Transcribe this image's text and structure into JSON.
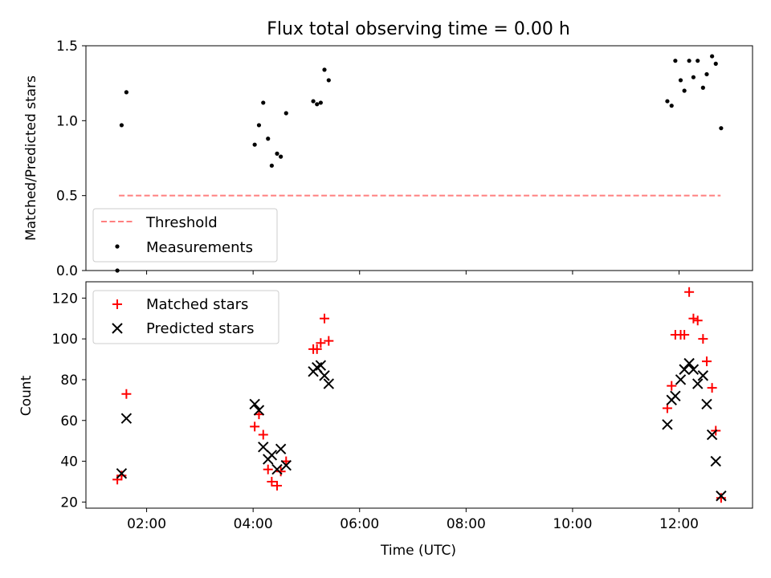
{
  "figure": {
    "title": "Flux total observing time = 0.00 h",
    "xlabel": "Time (UTC)",
    "xticks": [
      {
        "hour": 2,
        "label": "02:00"
      },
      {
        "hour": 4,
        "label": "04:00"
      },
      {
        "hour": 6,
        "label": "06:00"
      },
      {
        "hour": 8,
        "label": "08:00"
      },
      {
        "hour": 10,
        "label": "10:00"
      },
      {
        "hour": 12,
        "label": "12:00"
      }
    ],
    "xlim": [
      0.86,
      13.38
    ],
    "x_unit": "hours UTC"
  },
  "colors": {
    "threshold": "#ff7f7f",
    "measurements": "#000000",
    "matched": "#ff0000",
    "predicted": "#000000"
  },
  "chart_data": [
    {
      "type": "scatter",
      "ylabel": "Matched/Predicted stars",
      "ylim": [
        0,
        1.5
      ],
      "yticks": [
        0,
        0.5,
        1.0,
        1.5
      ],
      "ytick_labels": [
        "0.0",
        "0.5",
        "1.0",
        "1.5"
      ],
      "legend_position": "lower-left",
      "threshold": {
        "name": "Threshold",
        "y": 0.5,
        "x_range": [
          1.48,
          12.78
        ]
      },
      "series": [
        {
          "name": "Measurements",
          "marker": "dot",
          "x": [
            1.45,
            1.53,
            1.62,
            4.03,
            4.11,
            4.19,
            4.28,
            4.35,
            4.45,
            4.52,
            4.62,
            5.13,
            5.2,
            5.27,
            5.34,
            5.42,
            11.78,
            11.86,
            11.93,
            12.03,
            12.1,
            12.19,
            12.27,
            12.35,
            12.45,
            12.52,
            12.62,
            12.69,
            12.79
          ],
          "y": [
            0.0,
            0.97,
            1.19,
            0.84,
            0.97,
            1.12,
            0.88,
            0.7,
            0.78,
            0.76,
            1.05,
            1.13,
            1.11,
            1.12,
            1.34,
            1.27,
            1.13,
            1.1,
            1.4,
            1.27,
            1.2,
            1.4,
            1.29,
            1.4,
            1.22,
            1.31,
            1.43,
            1.38,
            0.95
          ]
        }
      ]
    },
    {
      "type": "scatter",
      "ylabel": "Count",
      "ylim": [
        17,
        128
      ],
      "yticks": [
        20,
        40,
        60,
        80,
        100,
        120
      ],
      "ytick_labels": [
        "20",
        "40",
        "60",
        "80",
        "100",
        "120"
      ],
      "legend_position": "upper-left",
      "series": [
        {
          "name": "Matched stars",
          "marker": "plus",
          "x": [
            1.45,
            1.53,
            1.62,
            4.03,
            4.11,
            4.19,
            4.28,
            4.35,
            4.45,
            4.52,
            4.62,
            5.13,
            5.2,
            5.27,
            5.34,
            5.42,
            11.78,
            11.86,
            11.93,
            12.03,
            12.1,
            12.19,
            12.27,
            12.35,
            12.45,
            12.52,
            12.62,
            12.69,
            12.79
          ],
          "y": [
            31,
            33,
            73,
            57,
            63,
            53,
            36,
            30,
            28,
            35,
            40,
            95,
            95,
            98,
            110,
            99,
            66,
            77,
            102,
            102,
            102,
            123,
            110,
            109,
            100,
            89,
            76,
            55,
            22
          ]
        },
        {
          "name": "Predicted stars",
          "marker": "x",
          "x": [
            1.53,
            1.62,
            4.03,
            4.11,
            4.19,
            4.28,
            4.35,
            4.45,
            4.52,
            4.62,
            5.13,
            5.2,
            5.27,
            5.34,
            5.42,
            11.78,
            11.86,
            11.93,
            12.03,
            12.1,
            12.19,
            12.27,
            12.35,
            12.45,
            12.52,
            12.62,
            12.69,
            12.79
          ],
          "y": [
            34,
            61,
            68,
            65,
            47,
            41,
            43,
            36,
            46,
            38,
            84,
            86,
            87,
            82,
            78,
            58,
            70,
            72,
            80,
            85,
            88,
            85,
            78,
            82,
            68,
            53,
            40,
            23
          ]
        }
      ]
    }
  ]
}
